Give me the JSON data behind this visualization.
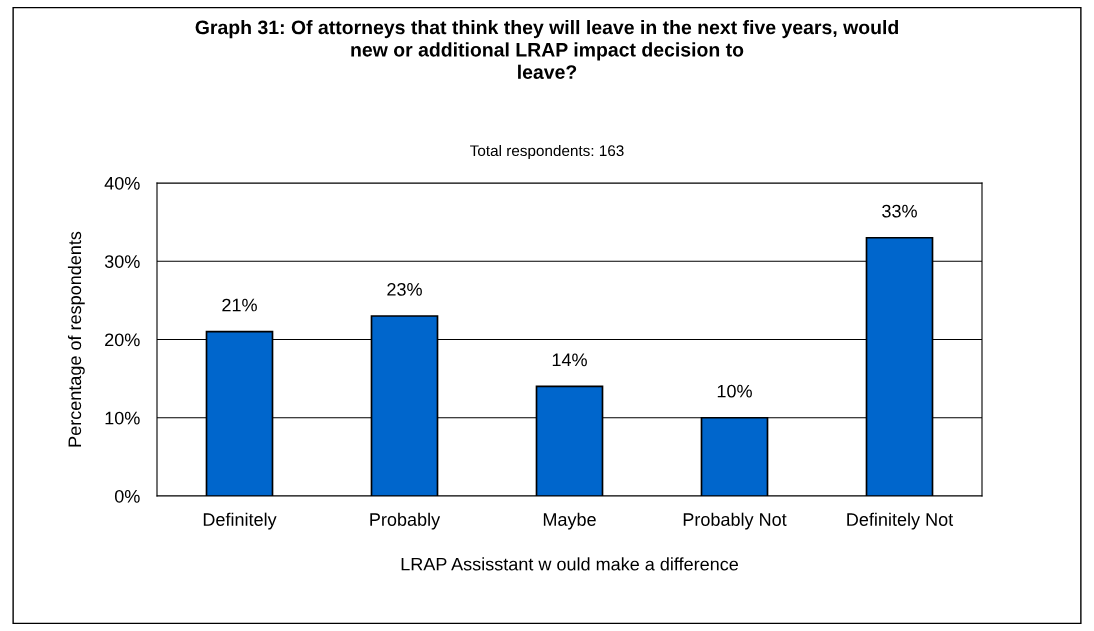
{
  "chart_data": {
    "type": "bar",
    "title": "Graph 31: Of attorneys that think they will leave in the next five years, would\nnew or additional LRAP impact decision to\nleave?",
    "subtitle": "Total respondents: 163",
    "xlabel": "LRAP Assisstant w ould make a difference",
    "ylabel": "Percentage of respondents",
    "categories": [
      "Definitely",
      "Probably",
      "Maybe",
      "Probably Not",
      "Definitely Not"
    ],
    "values": [
      21,
      23,
      14,
      10,
      33
    ],
    "color": "#0066cc",
    "value_labels": [
      "21%",
      "23%",
      "14%",
      "10%",
      "33%"
    ],
    "ylim": [
      0,
      40
    ],
    "yticks": [
      {
        "value": 0,
        "label": "0%"
      },
      {
        "value": 10,
        "label": "10%"
      },
      {
        "value": 20,
        "label": "20%"
      },
      {
        "value": 30,
        "label": "30%"
      },
      {
        "value": 40,
        "label": "40%"
      }
    ],
    "grid": "y",
    "legend": false
  }
}
